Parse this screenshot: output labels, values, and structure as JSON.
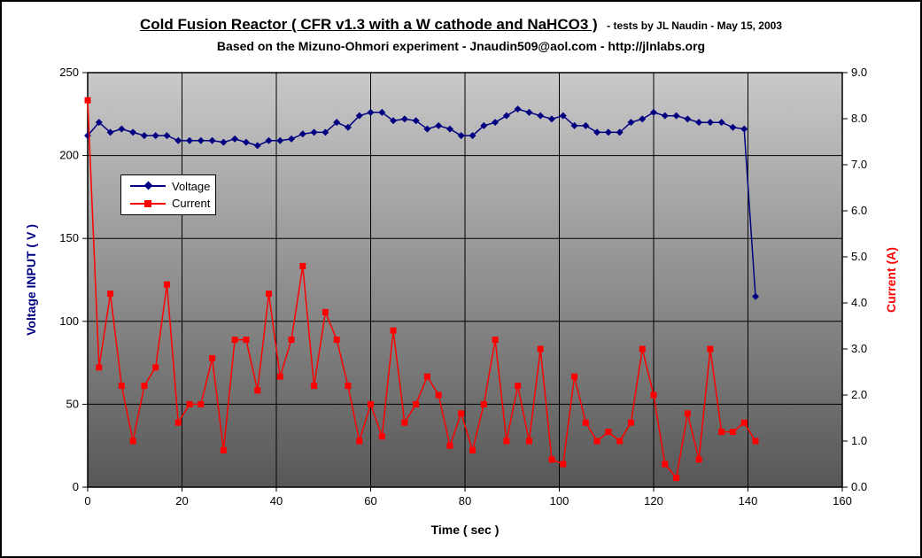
{
  "header": {
    "title_main": "Cold Fusion Reactor ( CFR v1.3 with a W cathode and NaHCO3 )",
    "title_suffix": "- tests by JL Naudin - May 15, 2003",
    "subtitle": "Based on the Mizuno-Ohmori experiment - Jnaudin509@aol.com - http://jlnlabs.org"
  },
  "colors": {
    "voltage": "#000080",
    "current": "#ff0000",
    "grid": "#000000",
    "plot_border": "#000000",
    "plot_bg_top": "#c9c9c9",
    "plot_bg_bottom": "#575757",
    "tick_text": "#000000"
  },
  "chart_data": {
    "type": "line",
    "title": "Cold Fusion Reactor ( CFR v1.3 with a W cathode and NaHCO3 ) - tests by JL Naudin - May 15, 2003",
    "subtitle": "Based on the Mizuno-Ohmori experiment - Jnaudin509@aol.com - http://jlnlabs.org",
    "xlabel": "Time ( sec )",
    "ylabel_left": "Voltage INPUT ( V )",
    "ylabel_right": "Current (A)",
    "xlim": [
      0,
      160
    ],
    "ylim_left": [
      0,
      250
    ],
    "ylim_right": [
      0,
      9
    ],
    "grid": true,
    "legend_position": "upper-left-inside",
    "x_ticks": [
      "0",
      "20",
      "40",
      "60",
      "80",
      "100",
      "120",
      "140",
      "160"
    ],
    "y_left_ticks": [
      "0",
      "50",
      "100",
      "150",
      "200",
      "250"
    ],
    "y_right_ticks": [
      "0.0",
      "1.0",
      "2.0",
      "3.0",
      "4.0",
      "5.0",
      "6.0",
      "7.0",
      "8.0",
      "9.0"
    ],
    "x": [
      0,
      2.4,
      4.8,
      7.2,
      9.6,
      12,
      14.4,
      16.8,
      19.2,
      21.6,
      24,
      26.4,
      28.8,
      31.2,
      33.6,
      36,
      38.4,
      40.8,
      43.2,
      45.6,
      48,
      50.4,
      52.8,
      55.2,
      57.6,
      60,
      62.4,
      64.8,
      67.2,
      69.6,
      72,
      74.4,
      76.8,
      79.2,
      81.6,
      84,
      86.4,
      88.8,
      91.2,
      93.6,
      96,
      98.4,
      100.8,
      103.2,
      105.6,
      108,
      110.4,
      112.8,
      115.2,
      117.6,
      120,
      122.4,
      124.8,
      127.2,
      129.6,
      132,
      134.4,
      136.8,
      139.2,
      141.6
    ],
    "series": [
      {
        "name": "Voltage",
        "axis": "left",
        "color": "#000080",
        "marker": "diamond",
        "values": [
          212,
          220,
          214,
          216,
          214,
          212,
          212,
          212,
          209,
          209,
          209,
          209,
          208,
          210,
          208,
          206,
          209,
          209,
          210,
          213,
          214,
          214,
          220,
          217,
          224,
          226,
          226,
          221,
          222,
          221,
          216,
          218,
          216,
          212,
          212,
          218,
          220,
          224,
          228,
          226,
          224,
          222,
          224,
          218,
          218,
          214,
          214,
          214,
          220,
          222,
          226,
          224,
          224,
          222,
          220,
          220,
          220,
          217,
          216,
          115
        ]
      },
      {
        "name": "Current",
        "axis": "right",
        "color": "#ff0000",
        "marker": "square",
        "values": [
          8.4,
          2.6,
          4.2,
          2.2,
          1.0,
          2.2,
          2.6,
          4.4,
          1.4,
          1.8,
          1.8,
          2.8,
          0.8,
          3.2,
          3.2,
          2.1,
          4.2,
          2.4,
          3.2,
          4.8,
          2.2,
          3.8,
          3.2,
          2.2,
          1.0,
          1.8,
          1.1,
          3.4,
          1.4,
          1.8,
          2.4,
          2.0,
          0.9,
          1.6,
          0.8,
          1.8,
          3.2,
          1.0,
          2.2,
          1.0,
          3.0,
          0.6,
          0.5,
          2.4,
          1.4,
          1.0,
          1.2,
          1.0,
          1.4,
          3.0,
          2.0,
          0.5,
          0.2,
          1.6,
          0.6,
          3.0,
          1.2,
          1.2,
          1.4,
          1.0
        ]
      }
    ],
    "legend": [
      "Voltage",
      "Current"
    ]
  }
}
